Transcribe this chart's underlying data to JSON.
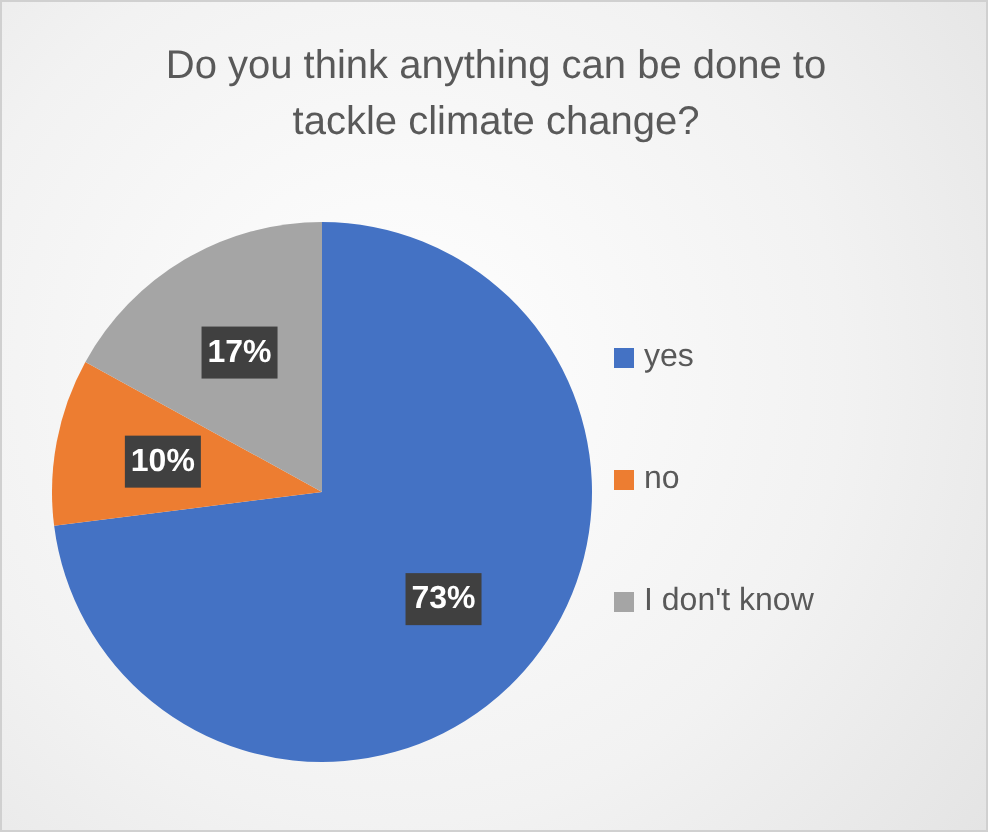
{
  "chart_data": {
    "type": "pie",
    "title": "Do you think anything can be done to tackle climate change?",
    "categories": [
      "yes",
      "no",
      "I don't know"
    ],
    "values": [
      73,
      10,
      17
    ],
    "colors": [
      "#4472c4",
      "#ed7d31",
      "#a5a5a5"
    ],
    "value_labels": [
      "73%",
      "10%",
      "17%"
    ],
    "legend": "right"
  }
}
